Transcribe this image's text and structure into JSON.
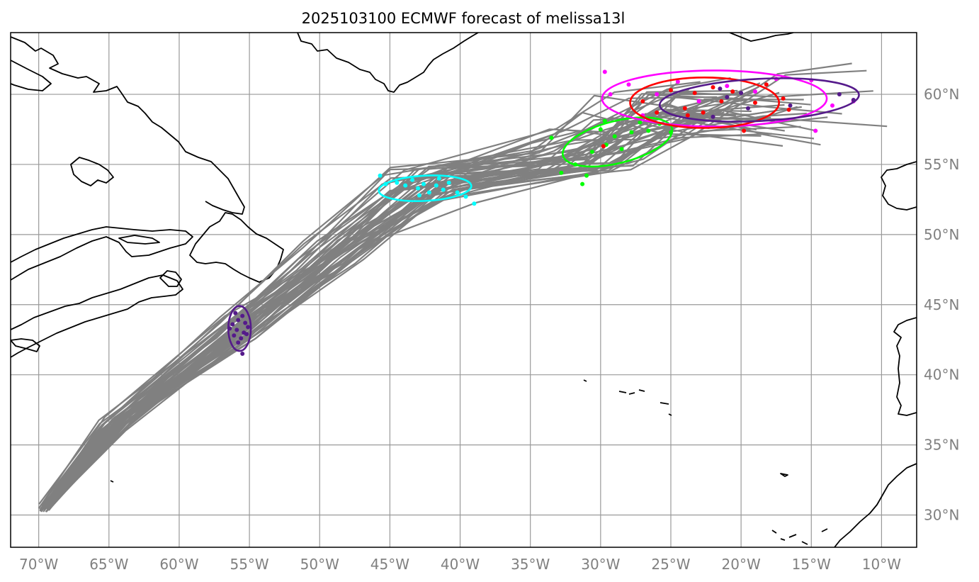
{
  "title": "2025103100 ECMWF forecast of melissa13l",
  "map": {
    "lon_range": [
      -72,
      -7.5
    ],
    "lat_range": [
      27.7,
      64.4
    ],
    "grid": true
  },
  "lon_ticks": [
    {
      "value": -70,
      "label": "70°W"
    },
    {
      "value": -65,
      "label": "65°W"
    },
    {
      "value": -60,
      "label": "60°W"
    },
    {
      "value": -55,
      "label": "55°W"
    },
    {
      "value": -50,
      "label": "50°W"
    },
    {
      "value": -45,
      "label": "45°W"
    },
    {
      "value": -40,
      "label": "40°W"
    },
    {
      "value": -35,
      "label": "35°W"
    },
    {
      "value": -30,
      "label": "30°W"
    },
    {
      "value": -25,
      "label": "25°W"
    },
    {
      "value": -20,
      "label": "20°W"
    },
    {
      "value": -15,
      "label": "15°W"
    },
    {
      "value": -10,
      "label": "10°W"
    }
  ],
  "lat_ticks": [
    {
      "value": 60,
      "label": "60°N"
    },
    {
      "value": 55,
      "label": "55°N"
    },
    {
      "value": 50,
      "label": "50°N"
    },
    {
      "value": 45,
      "label": "45°N"
    },
    {
      "value": 40,
      "label": "40°N"
    },
    {
      "value": 35,
      "label": "35°N"
    },
    {
      "value": 30,
      "label": "30°N"
    }
  ],
  "colors": {
    "track": "#808080",
    "coast": "#000000"
  },
  "chart_data": {
    "type": "scatter",
    "title": "2025103100 ECMWF forecast of melissa13l",
    "xlabel": "",
    "ylabel": "",
    "xlim": [
      -72,
      -7.5
    ],
    "ylim": [
      27.7,
      64.4
    ],
    "tracks": [
      {
        "name": "ensemble-spaghetti",
        "members": 50,
        "waypoints": [
          [
            -69.5,
            30.5
          ],
          [
            -64.5,
            36.5
          ],
          [
            -55.5,
            43.4
          ],
          [
            -49,
            48.5
          ],
          [
            -42.2,
            53.6
          ],
          [
            -31,
            56
          ],
          [
            -26.5,
            58.5
          ],
          [
            -20,
            59.3
          ]
        ]
      }
    ],
    "series": [
      {
        "name": "position-cluster-1",
        "color": "#551a8b",
        "ellipse": {
          "center": [
            -55.7,
            43.3
          ],
          "semi_axes_deg": [
            0.8,
            1.6
          ],
          "angle": 0
        },
        "points": [
          [
            -56.0,
            44.4
          ],
          [
            -55.5,
            44.2
          ],
          [
            -55.8,
            43.9
          ],
          [
            -56.2,
            43.6
          ],
          [
            -55.3,
            43.7
          ],
          [
            -55.9,
            43.2
          ],
          [
            -55.4,
            43.0
          ],
          [
            -56.1,
            42.8
          ],
          [
            -55.6,
            42.6
          ],
          [
            -55.2,
            42.9
          ],
          [
            -55.8,
            42.3
          ],
          [
            -55.5,
            41.5
          ],
          [
            -56.4,
            43.3
          ],
          [
            -55.1,
            43.4
          ]
        ]
      },
      {
        "name": "position-cluster-2",
        "color": "#00ffff",
        "ellipse": {
          "center": [
            -42.5,
            53.3
          ],
          "semi_axes_deg": [
            3.3,
            0.9
          ],
          "angle": -3
        },
        "points": [
          [
            -45.7,
            54.2
          ],
          [
            -45.3,
            53.6
          ],
          [
            -44.5,
            53.7
          ],
          [
            -43.9,
            53.5
          ],
          [
            -43.4,
            53.9
          ],
          [
            -43.0,
            53.3
          ],
          [
            -42.6,
            53.6
          ],
          [
            -42.2,
            53.0
          ],
          [
            -41.7,
            53.5
          ],
          [
            -41.2,
            53.2
          ],
          [
            -40.8,
            53.7
          ],
          [
            -40.2,
            53.0
          ],
          [
            -39.6,
            52.7
          ],
          [
            -39.0,
            52.2
          ],
          [
            -42.9,
            52.8
          ],
          [
            -41.5,
            54.0
          ]
        ]
      },
      {
        "name": "position-cluster-3",
        "color": "#00ff00",
        "ellipse": {
          "center": [
            -28.8,
            56.6
          ],
          "semi_axes_deg": [
            4.0,
            1.5
          ],
          "angle": -14
        },
        "points": [
          [
            -33.5,
            56.9
          ],
          [
            -32.8,
            54.4
          ],
          [
            -31.8,
            55.0
          ],
          [
            -31.0,
            54.2
          ],
          [
            -30.6,
            55.9
          ],
          [
            -30.0,
            57.5
          ],
          [
            -29.6,
            56.4
          ],
          [
            -29.0,
            57.0
          ],
          [
            -28.5,
            56.1
          ],
          [
            -27.8,
            57.3
          ],
          [
            -27.2,
            58.0
          ],
          [
            -26.6,
            57.4
          ],
          [
            -25.8,
            57.9
          ],
          [
            -25.0,
            57.3
          ],
          [
            -31.3,
            53.6
          ],
          [
            -29.7,
            58.1
          ]
        ]
      },
      {
        "name": "position-cluster-4",
        "color": "#ff00ff",
        "ellipse": {
          "center": [
            -21.9,
            59.7
          ],
          "semi_axes_deg": [
            8.0,
            2.0
          ],
          "angle": 0
        },
        "points": [
          [
            -29.7,
            61.6
          ],
          [
            -29.3,
            60.0
          ],
          [
            -28.0,
            60.7
          ],
          [
            -27.0,
            58.5
          ],
          [
            -26.0,
            60.0
          ],
          [
            -24.5,
            60.9
          ],
          [
            -23.0,
            59.5
          ],
          [
            -21.0,
            60.6
          ],
          [
            -19.0,
            60.2
          ],
          [
            -17.5,
            61.1
          ],
          [
            -15.0,
            61.0
          ],
          [
            -14.7,
            57.4
          ],
          [
            -13.5,
            59.2
          ],
          [
            -12.0,
            59.5
          ]
        ]
      },
      {
        "name": "position-cluster-5",
        "color": "#ff0000",
        "ellipse": {
          "center": [
            -22.6,
            59.4
          ],
          "semi_axes_deg": [
            5.3,
            1.8
          ],
          "angle": 0
        },
        "points": [
          [
            -27.0,
            59.5
          ],
          [
            -26.0,
            58.7
          ],
          [
            -25.0,
            60.3
          ],
          [
            -24.0,
            59.0
          ],
          [
            -23.3,
            60.1
          ],
          [
            -22.7,
            58.7
          ],
          [
            -22.0,
            60.5
          ],
          [
            -21.4,
            59.5
          ],
          [
            -20.6,
            60.2
          ],
          [
            -19.8,
            57.4
          ],
          [
            -19.0,
            59.4
          ],
          [
            -18.2,
            60.7
          ],
          [
            -17.0,
            59.7
          ],
          [
            -16.6,
            58.9
          ],
          [
            -29.8,
            56.3
          ],
          [
            -23.8,
            58.5
          ]
        ]
      },
      {
        "name": "position-cluster-6",
        "color": "#551a8b",
        "ellipse": {
          "center": [
            -18.7,
            59.6
          ],
          "semi_axes_deg": [
            7.1,
            1.5
          ],
          "angle": -3
        },
        "points": [
          [
            -21.5,
            60.4
          ],
          [
            -21.0,
            59.8
          ],
          [
            -20.0,
            60.1
          ],
          [
            -22.0,
            58.4
          ],
          [
            -19.5,
            59.0
          ],
          [
            -16.5,
            59.2
          ],
          [
            -13.0,
            60.0
          ],
          [
            -12.0,
            59.6
          ]
        ]
      }
    ]
  }
}
